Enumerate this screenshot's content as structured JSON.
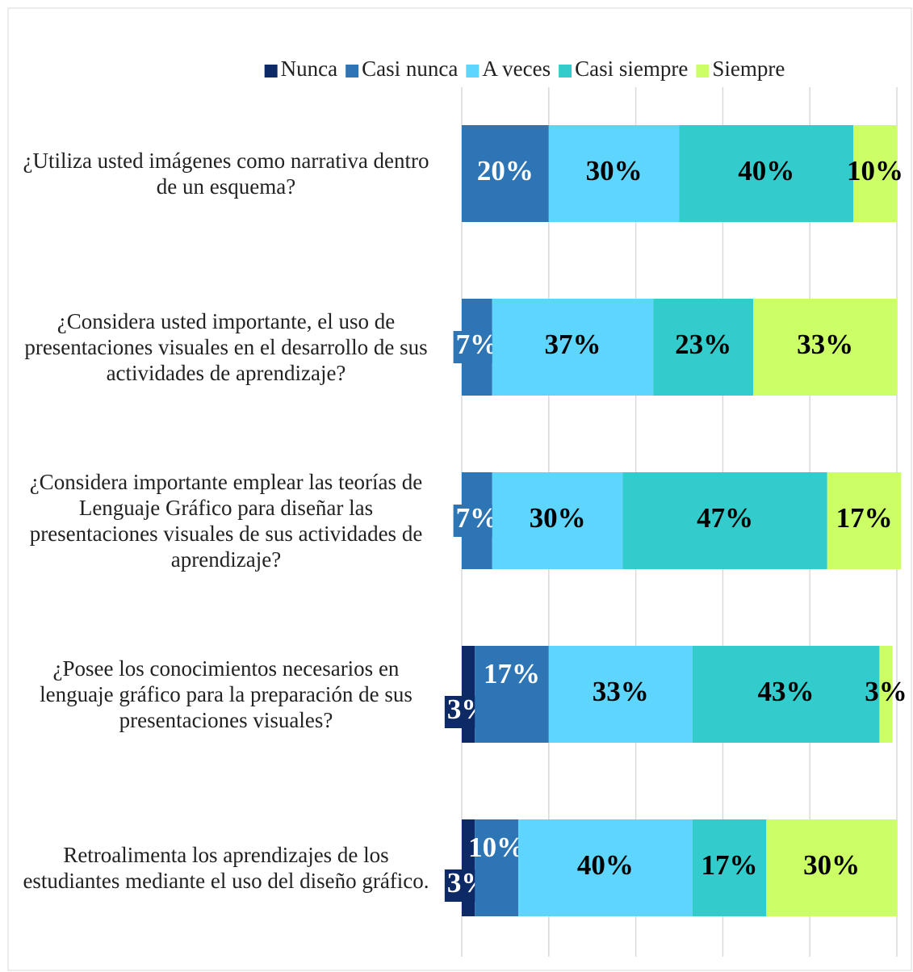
{
  "chart_data": {
    "type": "stacked_bar_horizontal",
    "categories": [
      "¿Utiliza usted imágenes como narrativa dentro de un esquema?",
      "¿Considera usted importante, el uso de presentaciones visuales en el desarrollo de sus actividades de aprendizaje?",
      "¿Considera importante emplear las teorías de Lenguaje Gráfico para diseñar las presentaciones visuales de sus actividades de aprendizaje?",
      "¿Posee los conocimientos necesarios en lenguaje gráfico para la preparación de sus presentaciones visuales?",
      "Retroalimenta los aprendizajes de los estudiantes mediante el uso del diseño gráfico."
    ],
    "series": [
      {
        "name": "Nunca",
        "color": "#0e2a66",
        "values": [
          null,
          null,
          null,
          3,
          3
        ],
        "value_labels": [
          null,
          null,
          null,
          "3%",
          "3%"
        ]
      },
      {
        "name": "Casi nunca",
        "color": "#2e75b6",
        "values": [
          20,
          7,
          7,
          17,
          10
        ],
        "value_labels": [
          "20%",
          "7%",
          "7%",
          "17%",
          "10%"
        ]
      },
      {
        "name": "A veces",
        "color": "#5dd5fc",
        "values": [
          30,
          37,
          30,
          33,
          40
        ],
        "value_labels": [
          "30%",
          "37%",
          "30%",
          "33%",
          "40%"
        ]
      },
      {
        "name": "Casi siempre",
        "color": "#33cccc",
        "values": [
          40,
          23,
          47,
          43,
          17
        ],
        "value_labels": [
          "40%",
          "23%",
          "47%",
          "43%",
          "17%"
        ]
      },
      {
        "name": "Siempre",
        "color": "#ccff66",
        "values": [
          10,
          33,
          17,
          3,
          30
        ],
        "value_labels": [
          "10%",
          "33%",
          "17%",
          "3%",
          "30%"
        ]
      }
    ],
    "xlim": [
      0,
      100
    ],
    "xticks": [
      0,
      20,
      40,
      60,
      80,
      100
    ],
    "grid": true,
    "legend": "top"
  }
}
